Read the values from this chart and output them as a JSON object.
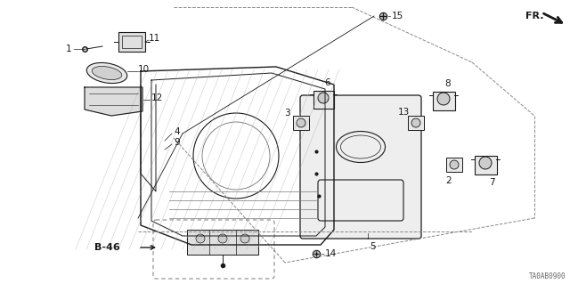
{
  "bg_color": "#ffffff",
  "fig_width": 6.4,
  "fig_height": 3.19,
  "dpi": 100,
  "diagram_code": "TA0AB0900",
  "fr_label": "FR.",
  "b46_label": "B-46",
  "line_color": "#1a1a1a",
  "dash_color": "#888888",
  "text_color": "#1a1a1a",
  "code_color": "#666666",
  "label_fontsize": 7.5,
  "code_fontsize": 5.5
}
